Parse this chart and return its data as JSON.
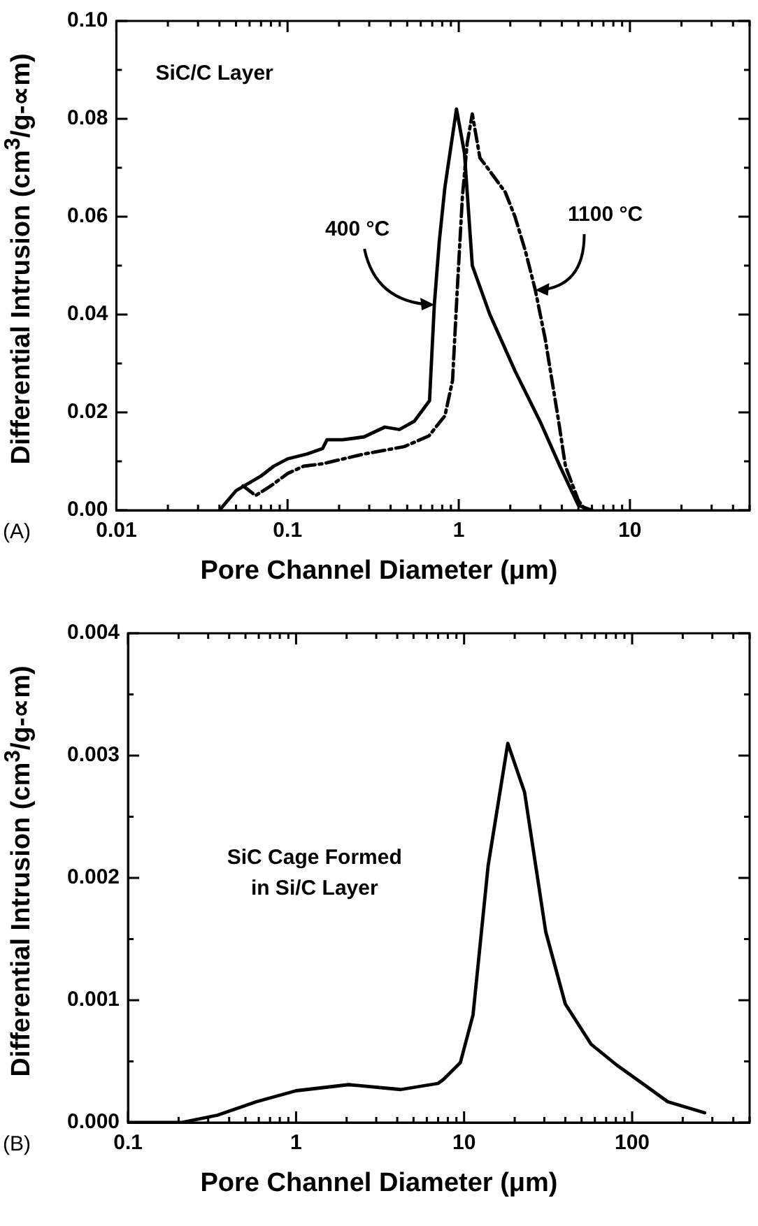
{
  "chart_data": [
    {
      "type": "line",
      "xlabel": "Pore Channel Diameter (μm)",
      "ylabel": "Differential Intrusion (cm$^{3}$/g-∝m)",
      "log": "x",
      "xlim": [
        0.01,
        50
      ],
      "xticks": [
        {
          "value": 0.01,
          "label": "0.01"
        },
        {
          "value": 0.02,
          "label": null
        },
        {
          "value": 0.03,
          "label": null
        },
        {
          "value": 0.04,
          "label": null
        },
        {
          "value": 0.05,
          "label": null
        },
        {
          "value": 0.06,
          "label": null
        },
        {
          "value": 0.07,
          "label": null
        },
        {
          "value": 0.08,
          "label": null
        },
        {
          "value": 0.09,
          "label": null
        },
        {
          "value": 0.1,
          "label": "0.1"
        },
        {
          "value": 0.2,
          "label": null
        },
        {
          "value": 0.3,
          "label": null
        },
        {
          "value": 0.4,
          "label": null
        },
        {
          "value": 0.5,
          "label": null
        },
        {
          "value": 0.6,
          "label": null
        },
        {
          "value": 0.7,
          "label": null
        },
        {
          "value": 0.8,
          "label": null
        },
        {
          "value": 0.9,
          "label": null
        },
        1,
        {
          "value": 2,
          "label": null
        },
        {
          "value": 3,
          "label": null
        },
        {
          "value": 4,
          "label": null
        },
        {
          "value": 5,
          "label": null
        },
        {
          "value": 6,
          "label": null
        },
        {
          "value": 7,
          "label": null
        },
        {
          "value": 8,
          "label": null
        },
        {
          "value": 9,
          "label": null
        },
        10,
        {
          "value": 20,
          "label": null
        },
        {
          "value": 30,
          "label": null
        },
        {
          "value": 40,
          "label": null
        },
        {
          "value": 50,
          "label": null
        }
      ],
      "ylim": [
        0,
        0.1
      ],
      "yticks": [
        {
          "value": 0,
          "label": "0.00"
        },
        {
          "value": 0.01,
          "label": null
        },
        0.02,
        {
          "value": 0.03,
          "label": null
        },
        0.04,
        {
          "value": 0.05,
          "label": null
        },
        0.06,
        {
          "value": 0.07,
          "label": null
        },
        0.08,
        {
          "value": 0.09,
          "label": null
        },
        {
          "value": 0.1,
          "label": "0.10"
        }
      ],
      "series": [
        {
          "color": "#000000",
          "line_style": "solid",
          "x": [
            0.04,
            0.05,
            0.07,
            0.083,
            0.1,
            0.13,
            0.16,
            0.17,
            0.21,
            0.28,
            0.37,
            0.45,
            0.55,
            0.675,
            0.72,
            0.77,
            0.83,
            0.97,
            1.08,
            1.2,
            1.52,
            2.13,
            3.0,
            3.9,
            5,
            6
          ],
          "values": [
            0,
            0.004,
            0.007,
            0.009,
            0.0105,
            0.0115,
            0.0126,
            0.0144,
            0.0144,
            0.015,
            0.017,
            0.0165,
            0.0182,
            0.0224,
            0.042,
            0.055,
            0.066,
            0.082,
            0.073,
            0.05,
            0.04,
            0.0285,
            0.018,
            0.009,
            0.001,
            0
          ]
        },
        {
          "color": "#000000",
          "line_style": "dashed",
          "x": [
            0.055,
            0.065,
            0.08,
            0.1,
            0.124,
            0.16,
            0.28,
            0.48,
            0.67,
            0.83,
            0.92,
            0.98,
            1.05,
            1.12,
            1.2,
            1.33,
            1.47,
            1.87,
            2.13,
            2.45,
            2.8,
            3.2,
            3.8,
            4.2,
            5,
            5.5
          ],
          "values": [
            0.005,
            0.003,
            0.005,
            0.0075,
            0.009,
            0.0095,
            0.0115,
            0.013,
            0.0152,
            0.0193,
            0.0265,
            0.045,
            0.064,
            0.075,
            0.081,
            0.072,
            0.07,
            0.065,
            0.06,
            0.053,
            0.045,
            0.035,
            0.019,
            0.009,
            0.002,
            0
          ]
        }
      ],
      "annotations": [
        "SiC/C Layer",
        "(A)",
        {
          "text": "400 °C",
          "x": 0.72,
          "y": 0.042
        },
        {
          "text": "1100 °C",
          "x": 2.8,
          "y": 0.045
        }
      ]
    },
    {
      "type": "line",
      "xlabel": "Pore Channel Diameter (μm)",
      "ylabel": "Differential Intrusion (cm$^{3}$/g-∝m)",
      "log": "x",
      "xlim": [
        0.1,
        500
      ],
      "xticks": [
        {
          "value": 0.1,
          "label": "0.1"
        },
        {
          "value": 0.2,
          "label": null
        },
        {
          "value": 0.3,
          "label": null
        },
        {
          "value": 0.4,
          "label": null
        },
        {
          "value": 0.5,
          "label": null
        },
        {
          "value": 0.6,
          "label": null
        },
        {
          "value": 0.7,
          "label": null
        },
        {
          "value": 0.8,
          "label": null
        },
        {
          "value": 0.9,
          "label": null
        },
        1,
        {
          "value": 2,
          "label": null
        },
        {
          "value": 3,
          "label": null
        },
        {
          "value": 4,
          "label": null
        },
        {
          "value": 5,
          "label": null
        },
        {
          "value": 6,
          "label": null
        },
        {
          "value": 7,
          "label": null
        },
        {
          "value": 8,
          "label": null
        },
        {
          "value": 9,
          "label": null
        },
        10,
        {
          "value": 20,
          "label": null
        },
        {
          "value": 30,
          "label": null
        },
        {
          "value": 40,
          "label": null
        },
        {
          "value": 50,
          "label": null
        },
        {
          "value": 60,
          "label": null
        },
        {
          "value": 70,
          "label": null
        },
        {
          "value": 80,
          "label": null
        },
        {
          "value": 90,
          "label": null
        },
        100,
        {
          "value": 200,
          "label": null
        },
        {
          "value": 300,
          "label": null
        },
        {
          "value": 400,
          "label": null
        },
        {
          "value": 500,
          "label": null
        }
      ],
      "ylim": [
        0,
        0.004
      ],
      "yticks": [
        {
          "value": 0,
          "label": "0.000"
        },
        {
          "value": 0.0005,
          "label": null
        },
        0.001,
        {
          "value": 0.0015,
          "label": null
        },
        0.002,
        {
          "value": 0.0025,
          "label": null
        },
        0.003,
        {
          "value": 0.0035,
          "label": null
        },
        0.004
      ],
      "series": [
        {
          "color": "#000000",
          "line_style": "solid",
          "x": [
            0.1,
            0.207,
            0.34,
            0.58,
            1.0,
            2.06,
            4.2,
            7.0,
            7.5,
            9.5,
            11.3,
            13.9,
            18.2,
            22.9,
            30.6,
            40,
            57,
            81,
            115,
            163,
            270
          ],
          "values": [
            0,
            0,
            6e-05,
            0.00017,
            0.00026,
            0.00031,
            0.00027,
            0.00032,
            0.00035,
            0.00049,
            0.00088,
            0.0021,
            0.0031,
            0.0027,
            0.00156,
            0.00097,
            0.00064,
            0.00047,
            0.00032,
            0.00017,
            8e-05
          ]
        }
      ],
      "annotations": [
        "SiC Cage Formed\nin Si/C Layer",
        "(B)"
      ]
    }
  ]
}
